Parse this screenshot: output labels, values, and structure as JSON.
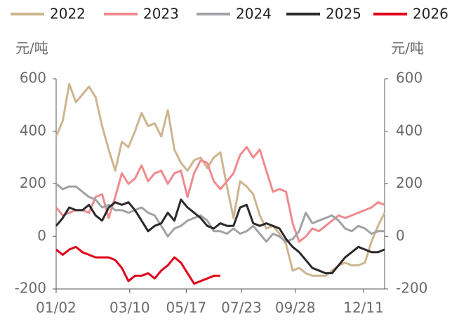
{
  "chart_data": {
    "type": "line",
    "y_label": "元/吨",
    "y2_label": "元/吨",
    "x": [
      0,
      5,
      10,
      15,
      20,
      25,
      30,
      35,
      40,
      45,
      50,
      55,
      60,
      65,
      70,
      75,
      80,
      85,
      90,
      95,
      100,
      105,
      110,
      115,
      120,
      125,
      130,
      135,
      140,
      145,
      150,
      155,
      160,
      165,
      170,
      175,
      180,
      185,
      190,
      195,
      200,
      205,
      210,
      215,
      220,
      225,
      230,
      235,
      240,
      245,
      250
    ],
    "xlim": [
      0,
      250
    ],
    "xticks": [
      {
        "value": 0,
        "label": "01/02"
      },
      {
        "value": 56,
        "label": "03/10"
      },
      {
        "value": 99,
        "label": "05/17"
      },
      {
        "value": 141,
        "label": "07/23"
      },
      {
        "value": 182,
        "label": "09/28"
      },
      {
        "value": 234,
        "label": "12/11"
      }
    ],
    "ylim": [
      -200,
      600
    ],
    "yticks": [
      -200,
      0,
      200,
      400,
      600
    ],
    "y2lim": [
      -200,
      600
    ],
    "y2ticks": [
      -200,
      0,
      200,
      400,
      600
    ],
    "legend": "top",
    "series": [
      {
        "name": "2022",
        "color": "#cdb58f",
        "values": [
          380,
          440,
          580,
          510,
          540,
          570,
          530,
          420,
          330,
          250,
          360,
          340,
          400,
          470,
          420,
          430,
          380,
          480,
          330,
          280,
          250,
          290,
          300,
          260,
          300,
          320,
          190,
          70,
          210,
          190,
          160,
          80,
          30,
          40,
          10,
          -30,
          -130,
          -120,
          -140,
          -150,
          -150,
          -150,
          -130,
          -110,
          -100,
          -110,
          -110,
          -100,
          -20,
          40,
          90
        ]
      },
      {
        "name": "2023",
        "color": "#f08a8e",
        "values": [
          110,
          80,
          90,
          100,
          100,
          90,
          150,
          160,
          70,
          150,
          240,
          200,
          220,
          270,
          210,
          240,
          250,
          200,
          240,
          250,
          150,
          240,
          290,
          280,
          210,
          180,
          210,
          240,
          310,
          340,
          300,
          330,
          250,
          170,
          180,
          170,
          50,
          -20,
          0,
          30,
          20,
          40,
          60,
          80,
          70,
          80,
          90,
          100,
          110,
          130,
          120
        ]
      },
      {
        "name": "2024",
        "color": "#a0a2a5",
        "values": [
          200,
          180,
          190,
          190,
          170,
          150,
          140,
          110,
          120,
          100,
          100,
          90,
          100,
          110,
          90,
          80,
          40,
          0,
          30,
          40,
          60,
          70,
          80,
          60,
          20,
          20,
          10,
          30,
          10,
          20,
          40,
          10,
          -20,
          10,
          0,
          -20,
          -10,
          20,
          90,
          50,
          60,
          70,
          80,
          60,
          30,
          20,
          40,
          30,
          10,
          20,
          20
        ]
      },
      {
        "name": "2025",
        "color": "#2a2a2a",
        "values": [
          40,
          70,
          110,
          100,
          100,
          120,
          80,
          60,
          110,
          130,
          120,
          130,
          100,
          60,
          20,
          40,
          50,
          90,
          60,
          140,
          110,
          90,
          70,
          40,
          30,
          50,
          40,
          40,
          110,
          120,
          50,
          40,
          50,
          40,
          30,
          -10,
          -40,
          -60,
          -90,
          -120,
          -130,
          -140,
          -140,
          -110,
          -80,
          -60,
          -40,
          -50,
          -60,
          -60,
          -50
        ]
      },
      {
        "name": "2026",
        "color": "#e0001b",
        "values": [
          -50,
          -70,
          -50,
          -40,
          -60,
          -70,
          -80,
          -80,
          -80,
          -90,
          -120,
          -170,
          -150,
          -150,
          -140,
          -160,
          -130,
          -110,
          -80,
          -100,
          -140,
          -180,
          -170,
          -160,
          -150,
          -150,
          null,
          null,
          null,
          null,
          null,
          null,
          null,
          null,
          null,
          null,
          null,
          null,
          null,
          null,
          null,
          null,
          null,
          null,
          null,
          null,
          null,
          null,
          null,
          null,
          null
        ]
      }
    ]
  }
}
